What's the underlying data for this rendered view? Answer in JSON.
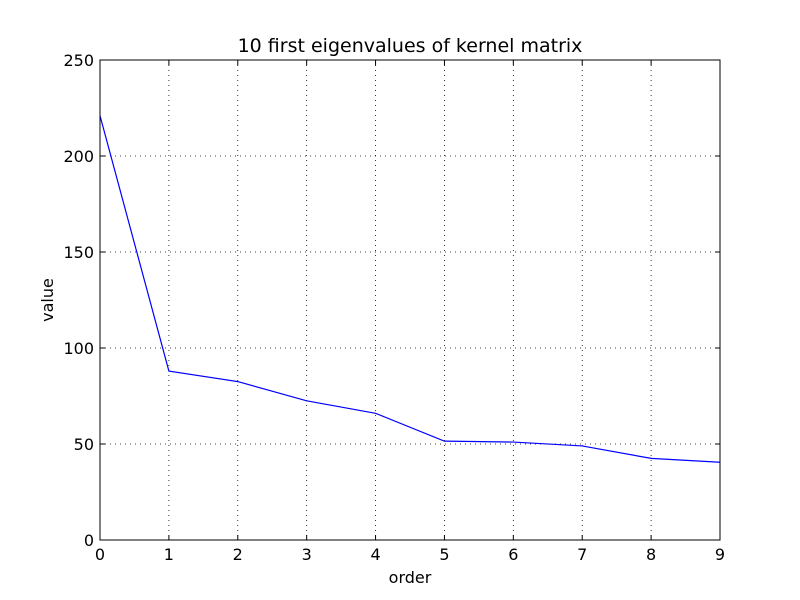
{
  "chart_data": {
    "type": "line",
    "title": "10 first eigenvalues of kernel matrix",
    "xlabel": "order",
    "ylabel": "value",
    "xlim": [
      0,
      9
    ],
    "ylim": [
      0,
      250
    ],
    "xticks": [
      0,
      1,
      2,
      3,
      4,
      5,
      6,
      7,
      8,
      9
    ],
    "yticks": [
      0,
      50,
      100,
      150,
      200,
      250
    ],
    "grid": true,
    "legend": "none",
    "series": [
      {
        "color": "#0000ff",
        "x": [
          0,
          1,
          2,
          3,
          4,
          5,
          6,
          7,
          8,
          9
        ],
        "y": [
          221,
          88,
          82.5,
          72.5,
          66,
          51.5,
          51,
          49,
          42.5,
          40.5
        ]
      }
    ]
  }
}
